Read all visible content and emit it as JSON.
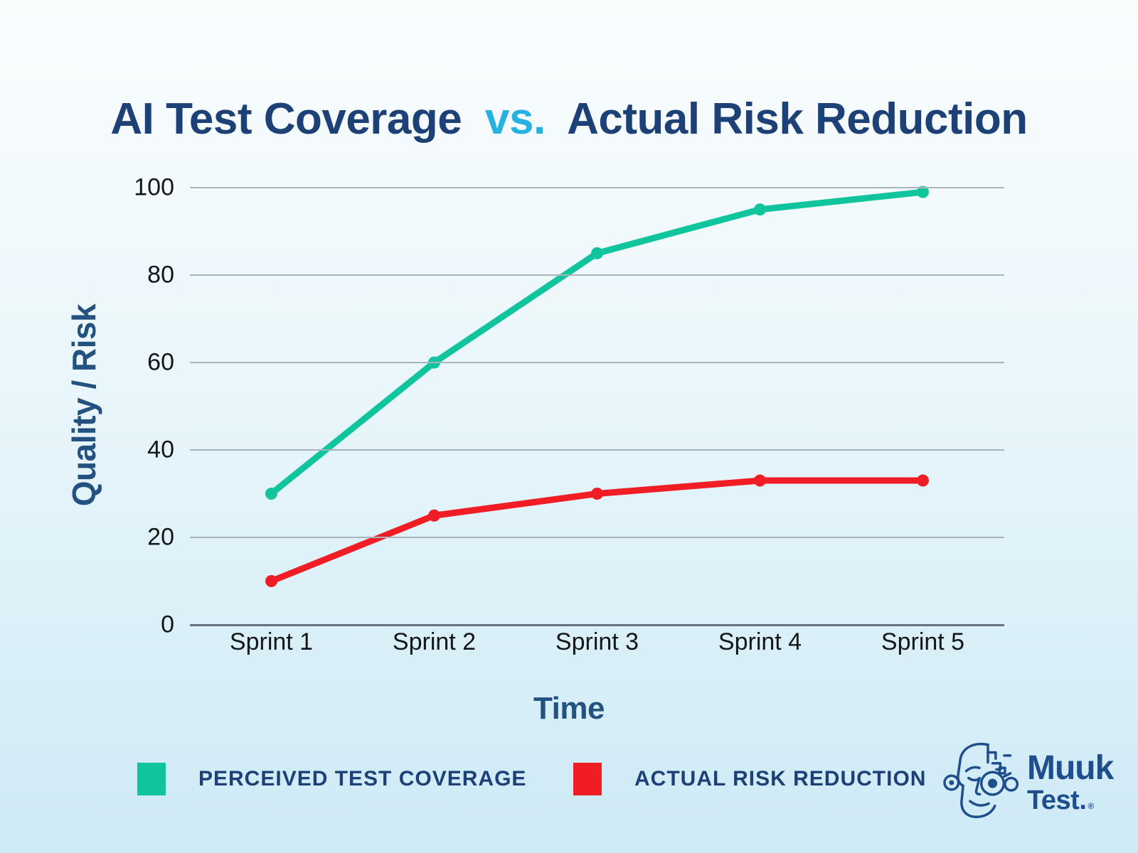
{
  "title": {
    "part1": "AI Test Coverage",
    "vs": "vs.",
    "part2": "Actual Risk Reduction"
  },
  "colors": {
    "navy": "#1d4076",
    "cyan": "#27b1e2",
    "axis-navy": "#235180",
    "text-dark": "#14171a",
    "grid": "#a9b3ba",
    "axis-line": "#67727a",
    "logo-blue": "#1e4e8c",
    "bg-top": "#fafdfe",
    "bg-bottom": "#cdeaf6"
  },
  "chart_data": {
    "type": "line",
    "categories": [
      "Sprint 1",
      "Sprint 2",
      "Sprint 3",
      "Sprint 4",
      "Sprint 5"
    ],
    "series": [
      {
        "name": "PERCEIVED TEST COVERAGE",
        "color": "#10c59d",
        "values": [
          30,
          60,
          85,
          95,
          99
        ]
      },
      {
        "name": "ACTUAL RISK REDUCTION",
        "color": "#f01d24",
        "values": [
          10,
          25,
          30,
          33,
          33
        ]
      }
    ],
    "title": "AI Test Coverage vs. Actual Risk Reduction",
    "xlabel": "Time",
    "ylabel": "Quality / Risk",
    "ylim": [
      0,
      100
    ],
    "yticks": [
      0,
      20,
      40,
      60,
      80,
      100
    ],
    "grid": true,
    "legend_position": "bottom"
  },
  "logo": {
    "line1": "Muuk",
    "line2": "Test.",
    "registered": "®"
  }
}
